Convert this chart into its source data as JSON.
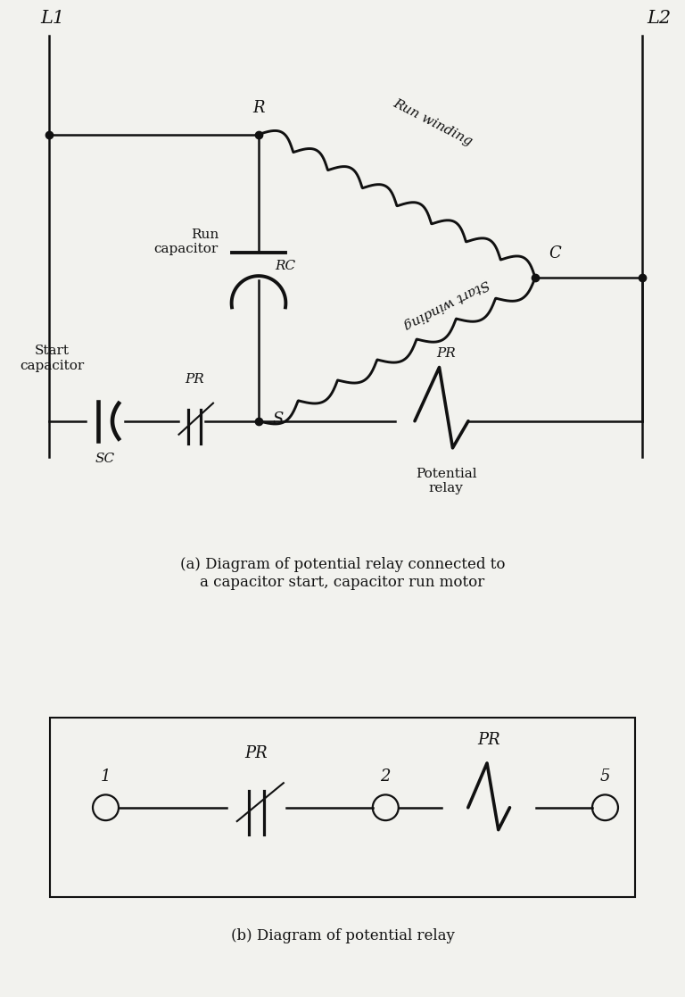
{
  "bg_color": "#f2f2ee",
  "line_color": "#111111",
  "title_a": "(a) Diagram of potential relay connected to\na capacitor start, capacitor run motor",
  "title_b": "(b) Diagram of potential relay",
  "label_L1": "L1",
  "label_L2": "L2",
  "label_R": "R",
  "label_C": "C",
  "label_S": "S",
  "label_RC": "RC",
  "label_SC": "SC",
  "label_PR_switch": "PR",
  "label_PR_coil": "PR",
  "label_run": "Run winding",
  "label_start": "Start winding",
  "label_run_cap": "Run\ncapacitor",
  "label_start_cap": "Start\ncapacitor",
  "label_potential": "Potential\nrelay",
  "lw": 1.8,
  "dot_size": 6
}
